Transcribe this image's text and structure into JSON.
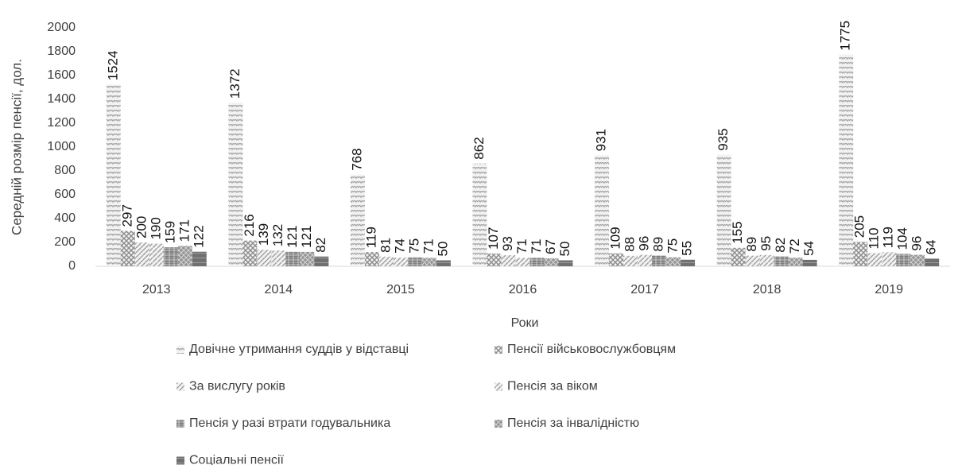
{
  "chart_data": {
    "type": "bar",
    "x_label": "Роки",
    "y_label": "Середній розмір пенсії, дол.",
    "categories": [
      "2013",
      "2014",
      "2015",
      "2016",
      "2017",
      "2018",
      "2019"
    ],
    "series": [
      {
        "name": "Довічне утримання суддів у відставці",
        "color": "#a6a6a6",
        "values": [
          1524,
          1372,
          768,
          862,
          931,
          935,
          1775
        ]
      },
      {
        "name": "Пенсії військовослужбовцям",
        "color": "#8c8c8c",
        "values": [
          297,
          216,
          119,
          107,
          109,
          155,
          205
        ]
      },
      {
        "name": "За вислугу років",
        "color": "#9a9a9a",
        "values": [
          200,
          139,
          81,
          93,
          88,
          89,
          110
        ]
      },
      {
        "name": "Пенсія за віком",
        "color": "#a0a0a0",
        "values": [
          190,
          132,
          74,
          71,
          96,
          95,
          119
        ]
      },
      {
        "name": "Пенсія у разі втрати годувальника",
        "color": "#7f7f7f",
        "values": [
          159,
          121,
          75,
          71,
          89,
          82,
          104
        ]
      },
      {
        "name": "Пенсія за інвалідністю",
        "color": "#959595",
        "values": [
          171,
          121,
          71,
          67,
          75,
          72,
          96
        ]
      },
      {
        "name": "Соціальні пенсії",
        "color": "#707070",
        "values": [
          122,
          82,
          50,
          50,
          55,
          54,
          64
        ]
      }
    ],
    "ylim": [
      0,
      2000
    ],
    "yticks": [
      0,
      200,
      400,
      600,
      800,
      1000,
      1200,
      1400,
      1600,
      1800,
      2000
    ],
    "grid": false
  }
}
